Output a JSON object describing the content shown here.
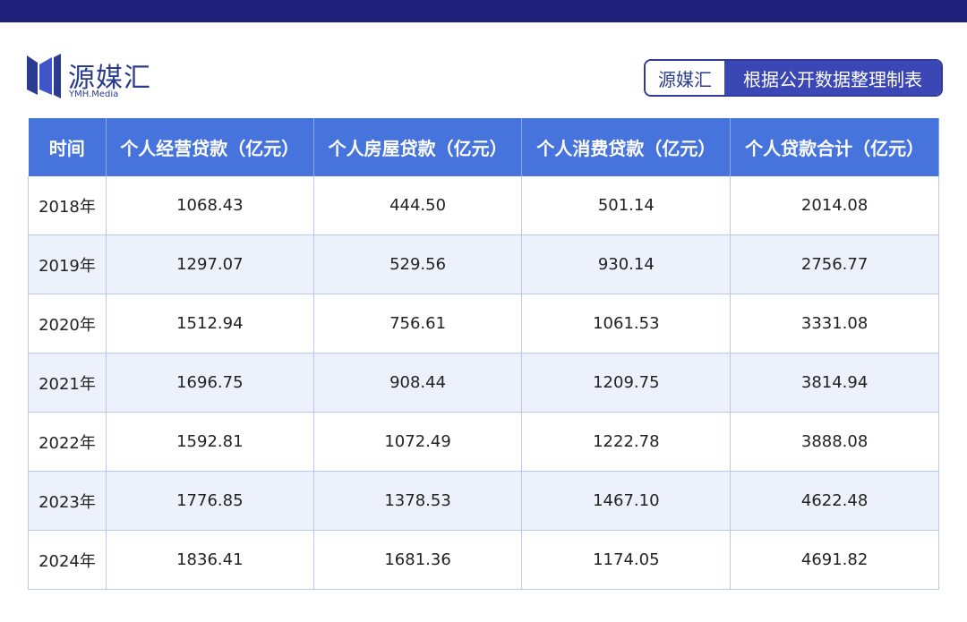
{
  "logo": {
    "name": "源媒汇",
    "sub": "YMH.Media"
  },
  "source": {
    "brand": "源媒汇",
    "text": "根据公开数据整理制表"
  },
  "table": {
    "columns": [
      "时间",
      "个人经营贷款（亿元）",
      "个人房屋贷款（亿元）",
      "个人消费贷款（亿元）",
      "个人贷款合计（亿元）"
    ],
    "rows": [
      [
        "2018年",
        "1068.43",
        "444.50",
        "501.14",
        "2014.08"
      ],
      [
        "2019年",
        "1297.07",
        "529.56",
        "930.14",
        "2756.77"
      ],
      [
        "2020年",
        "1512.94",
        "756.61",
        "1061.53",
        "3331.08"
      ],
      [
        "2021年",
        "1696.75",
        "908.44",
        "1209.75",
        "3814.94"
      ],
      [
        "2022年",
        "1592.81",
        "1072.49",
        "1222.78",
        "3888.08"
      ],
      [
        "2023年",
        "1776.85",
        "1378.53",
        "1467.10",
        "4622.48"
      ],
      [
        "2024年",
        "1836.41",
        "1681.36",
        "1174.05",
        "4691.82"
      ]
    ]
  }
}
